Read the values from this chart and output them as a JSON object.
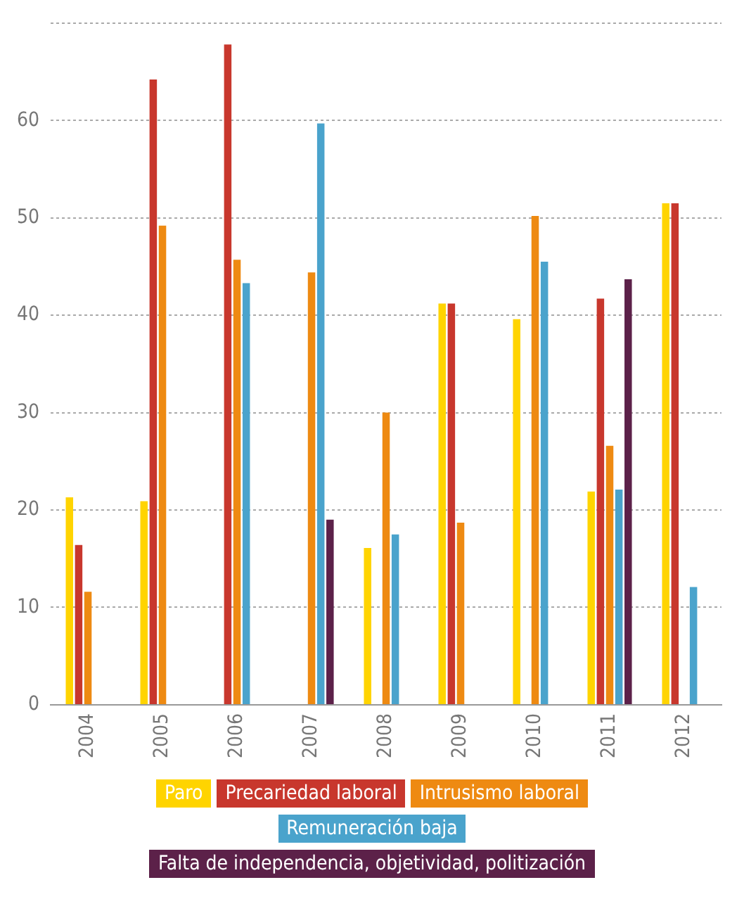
{
  "chart_data": {
    "type": "bar",
    "categories": [
      "2004",
      "2005",
      "2006",
      "2007",
      "2008",
      "2009",
      "2010",
      "2011",
      "2012"
    ],
    "series": [
      {
        "name": "Paro",
        "color": "#ffd400",
        "values": [
          21.3,
          20.9,
          null,
          null,
          16.1,
          41.2,
          39.6,
          21.9,
          51.5
        ]
      },
      {
        "name": "Precariedad laboral",
        "color": "#c8372d",
        "values": [
          16.4,
          64.2,
          67.8,
          null,
          null,
          41.2,
          null,
          41.7,
          51.5
        ]
      },
      {
        "name": "Intrusismo laboral",
        "color": "#ee8a12",
        "values": [
          11.6,
          49.2,
          45.7,
          44.4,
          30.0,
          18.7,
          50.2,
          26.6,
          null
        ]
      },
      {
        "name": "Remuneración baja",
        "color": "#4aa3cc",
        "values": [
          null,
          null,
          43.3,
          59.7,
          17.5,
          null,
          45.5,
          22.1,
          12.1
        ]
      },
      {
        "name": "Falta de independencia, objetividad, politización",
        "color": "#5c2149",
        "values": [
          null,
          null,
          null,
          19.0,
          null,
          null,
          null,
          43.7,
          null
        ]
      }
    ],
    "ylim": [
      0,
      70
    ],
    "yticks": [
      0,
      10,
      20,
      30,
      40,
      50,
      60,
      {
        "value": 70,
        "label": null
      }
    ],
    "grid": "y",
    "legend": "bottom"
  }
}
